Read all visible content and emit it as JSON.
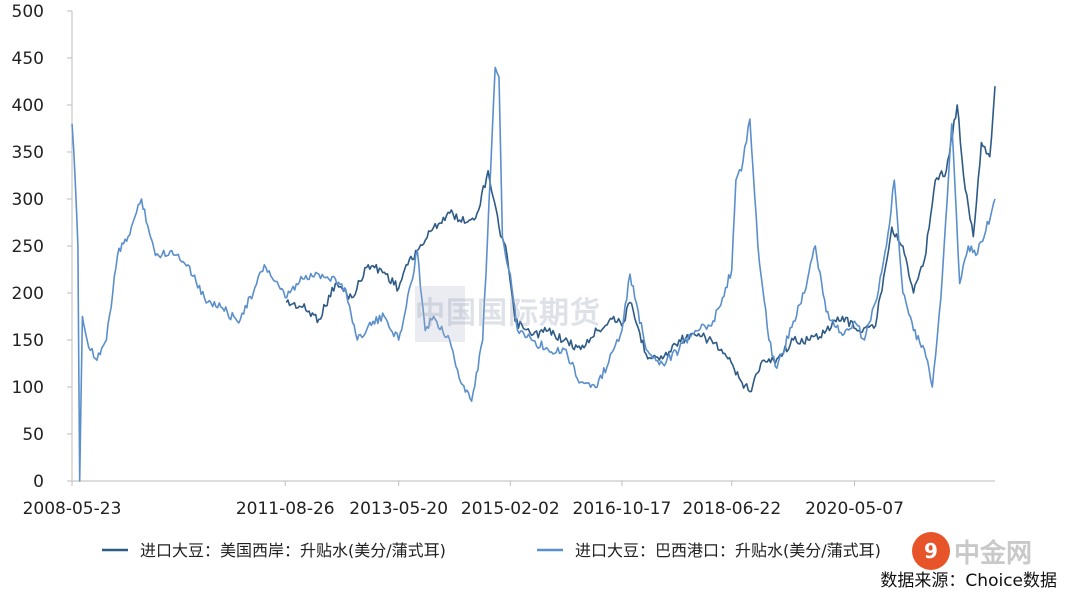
{
  "chart_data": {
    "type": "line",
    "ylim": [
      0,
      500
    ],
    "yticks": [
      "0",
      "50",
      "100",
      "150",
      "200",
      "250",
      "300",
      "350",
      "400",
      "450",
      "500"
    ],
    "xticks": [
      "2008-05-23",
      "2011-08-26",
      "2013-05-20",
      "2015-02-02",
      "2016-10-17",
      "2018-06-22",
      "2020-05-07"
    ],
    "x_start": "2008-05-23",
    "x_end": "2022-06-30",
    "series": [
      {
        "name": "进口大豆：美国西岸：升贴水(美分/蒲式耳)",
        "color": "#2e5a86",
        "points": [
          [
            "2011-09-01",
            190
          ],
          [
            "2011-12-01",
            185
          ],
          [
            "2012-03-01",
            172
          ],
          [
            "2012-06-01",
            210
          ],
          [
            "2012-09-01",
            195
          ],
          [
            "2012-12-01",
            230
          ],
          [
            "2013-03-01",
            222
          ],
          [
            "2013-05-20",
            205
          ],
          [
            "2013-07-01",
            230
          ],
          [
            "2013-09-01",
            245
          ],
          [
            "2013-12-01",
            270
          ],
          [
            "2014-03-01",
            285
          ],
          [
            "2014-06-01",
            275
          ],
          [
            "2014-08-01",
            285
          ],
          [
            "2014-10-01",
            330
          ],
          [
            "2014-12-01",
            270
          ],
          [
            "2015-01-15",
            240
          ],
          [
            "2015-03-01",
            170
          ],
          [
            "2015-06-01",
            155
          ],
          [
            "2015-09-01",
            160
          ],
          [
            "2015-12-01",
            150
          ],
          [
            "2016-03-01",
            140
          ],
          [
            "2016-06-01",
            160
          ],
          [
            "2016-09-01",
            175
          ],
          [
            "2016-10-17",
            165
          ],
          [
            "2016-12-01",
            190
          ],
          [
            "2017-03-01",
            135
          ],
          [
            "2017-06-01",
            130
          ],
          [
            "2017-09-01",
            150
          ],
          [
            "2017-12-01",
            155
          ],
          [
            "2018-03-01",
            150
          ],
          [
            "2018-06-01",
            130
          ],
          [
            "2018-08-01",
            110
          ],
          [
            "2018-10-01",
            95
          ],
          [
            "2018-12-01",
            125
          ],
          [
            "2019-03-01",
            130
          ],
          [
            "2019-06-01",
            150
          ],
          [
            "2019-09-01",
            150
          ],
          [
            "2019-12-01",
            160
          ],
          [
            "2020-03-01",
            175
          ],
          [
            "2020-06-01",
            160
          ],
          [
            "2020-09-01",
            165
          ],
          [
            "2020-12-01",
            270
          ],
          [
            "2021-02-01",
            250
          ],
          [
            "2021-04-01",
            200
          ],
          [
            "2021-06-01",
            235
          ],
          [
            "2021-08-01",
            320
          ],
          [
            "2021-10-01",
            330
          ],
          [
            "2021-12-01",
            400
          ],
          [
            "2022-01-15",
            310
          ],
          [
            "2022-03-01",
            260
          ],
          [
            "2022-04-15",
            360
          ],
          [
            "2022-06-01",
            345
          ],
          [
            "2022-06-30",
            420
          ]
        ]
      },
      {
        "name": "进口大豆：巴西港口：升贴水(美分/蒲式耳)",
        "color": "#5b8fcb",
        "points": [
          [
            "2008-05-23",
            380
          ],
          [
            "2008-06-10",
            320
          ],
          [
            "2008-06-25",
            250
          ],
          [
            "2008-07-05",
            0
          ],
          [
            "2008-07-20",
            175
          ],
          [
            "2008-08-15",
            150
          ],
          [
            "2008-10-01",
            130
          ],
          [
            "2008-12-01",
            150
          ],
          [
            "2009-02-01",
            240
          ],
          [
            "2009-04-01",
            260
          ],
          [
            "2009-06-15",
            300
          ],
          [
            "2009-09-01",
            240
          ],
          [
            "2009-12-01",
            245
          ],
          [
            "2010-03-01",
            230
          ],
          [
            "2010-06-01",
            195
          ],
          [
            "2010-09-01",
            185
          ],
          [
            "2010-12-01",
            170
          ],
          [
            "2011-03-01",
            200
          ],
          [
            "2011-05-01",
            230
          ],
          [
            "2011-08-26",
            195
          ],
          [
            "2011-12-01",
            215
          ],
          [
            "2012-03-01",
            220
          ],
          [
            "2012-06-01",
            215
          ],
          [
            "2012-08-01",
            200
          ],
          [
            "2012-10-01",
            150
          ],
          [
            "2012-12-01",
            165
          ],
          [
            "2013-03-01",
            175
          ],
          [
            "2013-05-20",
            150
          ],
          [
            "2013-07-01",
            185
          ],
          [
            "2013-09-01",
            245
          ],
          [
            "2013-10-15",
            160
          ],
          [
            "2013-12-01",
            175
          ],
          [
            "2014-03-01",
            150
          ],
          [
            "2014-05-01",
            105
          ],
          [
            "2014-07-01",
            85
          ],
          [
            "2014-09-01",
            150
          ],
          [
            "2014-10-15",
            330
          ],
          [
            "2014-11-10",
            440
          ],
          [
            "2014-12-01",
            430
          ],
          [
            "2014-12-20",
            260
          ],
          [
            "2015-02-02",
            220
          ],
          [
            "2015-03-15",
            160
          ],
          [
            "2015-06-01",
            150
          ],
          [
            "2015-09-01",
            140
          ],
          [
            "2015-12-01",
            140
          ],
          [
            "2016-03-01",
            105
          ],
          [
            "2016-06-01",
            100
          ],
          [
            "2016-09-01",
            140
          ],
          [
            "2016-10-17",
            160
          ],
          [
            "2016-12-01",
            220
          ],
          [
            "2017-03-01",
            140
          ],
          [
            "2017-06-01",
            125
          ],
          [
            "2017-09-01",
            140
          ],
          [
            "2017-12-01",
            160
          ],
          [
            "2018-03-01",
            165
          ],
          [
            "2018-05-01",
            195
          ],
          [
            "2018-06-22",
            225
          ],
          [
            "2018-07-15",
            320
          ],
          [
            "2018-08-15",
            330
          ],
          [
            "2018-10-01",
            385
          ],
          [
            "2018-11-15",
            250
          ],
          [
            "2019-01-15",
            150
          ],
          [
            "2019-03-01",
            120
          ],
          [
            "2019-06-01",
            170
          ],
          [
            "2019-08-01",
            200
          ],
          [
            "2019-10-01",
            250
          ],
          [
            "2019-12-01",
            180
          ],
          [
            "2020-03-01",
            155
          ],
          [
            "2020-05-07",
            170
          ],
          [
            "2020-07-01",
            150
          ],
          [
            "2020-09-01",
            190
          ],
          [
            "2020-11-01",
            250
          ],
          [
            "2020-12-15",
            320
          ],
          [
            "2021-02-01",
            200
          ],
          [
            "2021-04-01",
            160
          ],
          [
            "2021-06-01",
            140
          ],
          [
            "2021-07-15",
            100
          ],
          [
            "2021-09-01",
            195
          ],
          [
            "2021-11-01",
            380
          ],
          [
            "2021-12-15",
            210
          ],
          [
            "2022-02-01",
            250
          ],
          [
            "2022-03-15",
            240
          ],
          [
            "2022-05-01",
            260
          ],
          [
            "2022-06-30",
            300
          ]
        ]
      }
    ]
  },
  "legend": [
    {
      "label": "进口大豆：美国西岸：升贴水(美分/蒲式耳)",
      "color": "#2e5a86"
    },
    {
      "label": "进口大豆：巴西港口：升贴水(美分/蒲式耳)",
      "color": "#5b8fcb"
    }
  ],
  "source": "数据来源：Choice数据",
  "watermark": "中国国际期货",
  "logo": {
    "mark": "9",
    "text": "中金网"
  }
}
